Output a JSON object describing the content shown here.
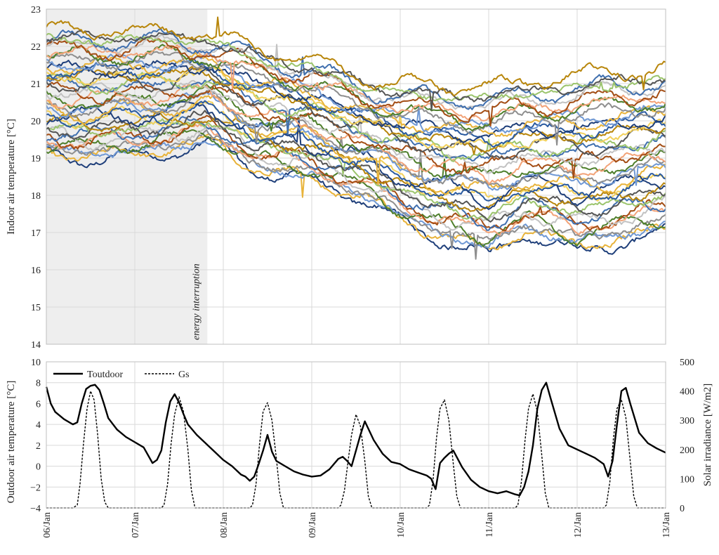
{
  "chart_data": [
    {
      "type": "line",
      "ylabel": "Indoor air temperature [°C]",
      "ylim": [
        14,
        23
      ],
      "yticks": [
        "14",
        "15",
        "16",
        "17",
        "18",
        "19",
        "20",
        "21",
        "22",
        "23"
      ],
      "xlim": [
        0,
        7
      ],
      "annotation": "energy interruption",
      "shaded_region_days": [
        0,
        1.82
      ],
      "grid": true,
      "num_series": 40,
      "series_colors": [
        "#1f3f7a",
        "#e8b33a",
        "#6f98d4",
        "#8e8e8e",
        "#4e7f2b",
        "#f2a378",
        "#a34d14",
        "#c2c2c2",
        "#3f6fae",
        "#9bc46c",
        "#555555",
        "#b8860b",
        "#f2d15c",
        "#2a5aa0"
      ],
      "envelope_upper": [
        [
          0,
          22.4
        ],
        [
          0.5,
          22.4
        ],
        [
          1.0,
          22.4
        ],
        [
          1.82,
          22.35
        ],
        [
          2.4,
          21.9
        ],
        [
          3.0,
          21.6
        ],
        [
          3.6,
          21.1
        ],
        [
          4.0,
          21.0
        ],
        [
          4.5,
          20.9
        ],
        [
          5.0,
          20.9
        ],
        [
          5.5,
          21.0
        ],
        [
          6.0,
          21.2
        ],
        [
          7.0,
          21.4
        ]
      ],
      "envelope_lower": [
        [
          0,
          19.0
        ],
        [
          0.5,
          18.9
        ],
        [
          1.0,
          18.95
        ],
        [
          1.82,
          19.3
        ],
        [
          2.4,
          18.6
        ],
        [
          3.0,
          18.3
        ],
        [
          3.6,
          17.8
        ],
        [
          4.0,
          17.2
        ],
        [
          4.4,
          16.8
        ],
        [
          5.0,
          16.3
        ],
        [
          5.4,
          16.9
        ],
        [
          6.0,
          16.4
        ],
        [
          7.0,
          16.9
        ]
      ]
    },
    {
      "type": "line",
      "ylabel": "Outdoor air temperature [°C]",
      "ylabel_right": "Solar irradiance [W/m2]",
      "ylim": [
        -4,
        10
      ],
      "ylim_right": [
        0,
        500
      ],
      "yticks": [
        "−4",
        "−2",
        "0",
        "2",
        "4",
        "6",
        "8",
        "10"
      ],
      "yticks_right": [
        "0",
        "100",
        "200",
        "300",
        "400",
        "500"
      ],
      "categories": [
        "06/Jan",
        "07/Jan",
        "08/Jan",
        "09/Jan",
        "10/Jan",
        "11/Jan",
        "12/Jan",
        "13/Jan"
      ],
      "legend_position": "top-left",
      "grid": true,
      "series": [
        {
          "name": "Toutdoor",
          "style": "solid",
          "axis": "left",
          "x": [
            0,
            0.05,
            0.1,
            0.2,
            0.3,
            0.35,
            0.4,
            0.45,
            0.5,
            0.55,
            0.6,
            0.65,
            0.7,
            0.8,
            0.9,
            1.0,
            1.1,
            1.2,
            1.25,
            1.3,
            1.35,
            1.4,
            1.45,
            1.5,
            1.55,
            1.6,
            1.7,
            1.8,
            1.9,
            2.0,
            2.1,
            2.2,
            2.25,
            2.3,
            2.35,
            2.4,
            2.45,
            2.5,
            2.55,
            2.6,
            2.7,
            2.8,
            2.9,
            3.0,
            3.1,
            3.2,
            3.3,
            3.35,
            3.4,
            3.45,
            3.5,
            3.55,
            3.6,
            3.7,
            3.8,
            3.9,
            4.0,
            4.1,
            4.2,
            4.3,
            4.35,
            4.4,
            4.45,
            4.5,
            4.55,
            4.6,
            4.7,
            4.8,
            4.9,
            5.0,
            5.1,
            5.2,
            5.3,
            5.35,
            5.4,
            5.45,
            5.5,
            5.55,
            5.6,
            5.65,
            5.7,
            5.8,
            5.9,
            6.0,
            6.1,
            6.2,
            6.3,
            6.35,
            6.4,
            6.45,
            6.5,
            6.55,
            6.6,
            6.7,
            6.8,
            6.9,
            7.0
          ],
          "values": [
            7.6,
            6.0,
            5.2,
            4.5,
            4.0,
            4.2,
            6.0,
            7.4,
            7.7,
            7.8,
            7.3,
            6.0,
            4.6,
            3.5,
            2.8,
            2.3,
            1.8,
            0.3,
            0.6,
            1.5,
            4.2,
            6.2,
            6.9,
            6.1,
            5.0,
            4.0,
            3.0,
            2.2,
            1.4,
            0.6,
            0.0,
            -0.8,
            -1.0,
            -1.4,
            -1.0,
            0.2,
            1.5,
            3.0,
            1.4,
            0.5,
            0.0,
            -0.5,
            -0.8,
            -1.0,
            -0.9,
            -0.3,
            0.7,
            0.9,
            0.5,
            0.0,
            1.5,
            3.0,
            4.3,
            2.5,
            1.2,
            0.4,
            0.2,
            -0.3,
            -0.6,
            -0.9,
            -1.2,
            -2.2,
            0.3,
            0.8,
            1.2,
            1.5,
            -0.1,
            -1.3,
            -2.0,
            -2.4,
            -2.6,
            -2.4,
            -2.7,
            -2.8,
            -2.0,
            -0.5,
            2.0,
            5.5,
            7.3,
            8.0,
            6.5,
            3.6,
            2.0,
            1.6,
            1.2,
            0.8,
            0.2,
            -1.0,
            0.5,
            4.0,
            7.2,
            7.5,
            6.0,
            3.2,
            2.2,
            1.7,
            1.3
          ]
        },
        {
          "name": "Gs",
          "style": "dashed",
          "axis": "right",
          "x": [
            0,
            0.3,
            0.35,
            0.38,
            0.42,
            0.46,
            0.5,
            0.54,
            0.58,
            0.62,
            0.66,
            0.7,
            1.3,
            1.33,
            1.37,
            1.41,
            1.45,
            1.5,
            1.55,
            1.6,
            1.64,
            1.68,
            2.3,
            2.33,
            2.37,
            2.41,
            2.45,
            2.5,
            2.55,
            2.6,
            2.64,
            2.68,
            3.3,
            3.33,
            3.37,
            3.41,
            3.45,
            3.5,
            3.55,
            3.6,
            3.64,
            3.68,
            4.3,
            4.33,
            4.37,
            4.41,
            4.45,
            4.5,
            4.55,
            4.6,
            4.64,
            4.68,
            5.3,
            5.33,
            5.37,
            5.41,
            5.45,
            5.5,
            5.55,
            5.6,
            5.64,
            5.68,
            6.3,
            6.33,
            6.37,
            6.41,
            6.45,
            6.5,
            6.55,
            6.6,
            6.64,
            6.68,
            7.0
          ],
          "values": [
            0,
            0,
            10,
            80,
            220,
            340,
            400,
            370,
            250,
            100,
            20,
            0,
            0,
            10,
            80,
            220,
            320,
            380,
            330,
            200,
            60,
            0,
            0,
            10,
            80,
            220,
            330,
            360,
            300,
            170,
            50,
            0,
            0,
            10,
            60,
            160,
            250,
            320,
            280,
            160,
            40,
            0,
            0,
            10,
            90,
            240,
            340,
            370,
            300,
            150,
            40,
            0,
            0,
            10,
            90,
            230,
            340,
            390,
            330,
            180,
            50,
            0,
            0,
            10,
            90,
            240,
            340,
            370,
            310,
            160,
            40,
            0,
            0
          ]
        }
      ]
    }
  ]
}
